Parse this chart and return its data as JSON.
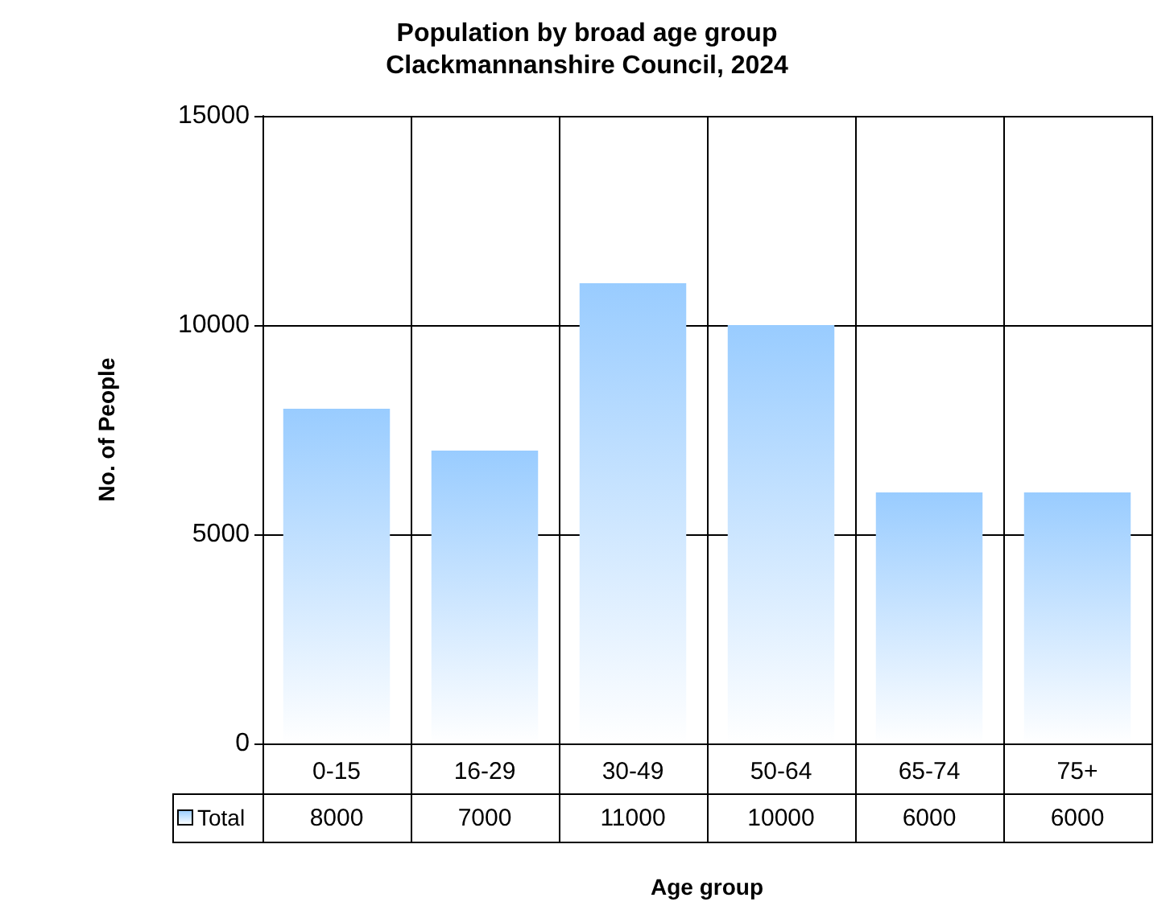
{
  "chart_data": {
    "type": "bar",
    "title": "Population by broad age group",
    "subtitle": "Clackmannanshire Council, 2024",
    "xlabel": "Age group",
    "ylabel": "No. of People",
    "categories": [
      "0-15",
      "16-29",
      "30-49",
      "50-64",
      "65-74",
      "75+"
    ],
    "series": [
      {
        "name": "Total",
        "color": "#99ccff",
        "values": [
          8000,
          7000,
          11000,
          10000,
          6000,
          6000
        ]
      }
    ],
    "ylim": [
      0,
      15000
    ],
    "yticks": [
      0,
      5000,
      10000,
      15000
    ],
    "grid": true,
    "legend": "bottom left",
    "data_labels": true
  }
}
